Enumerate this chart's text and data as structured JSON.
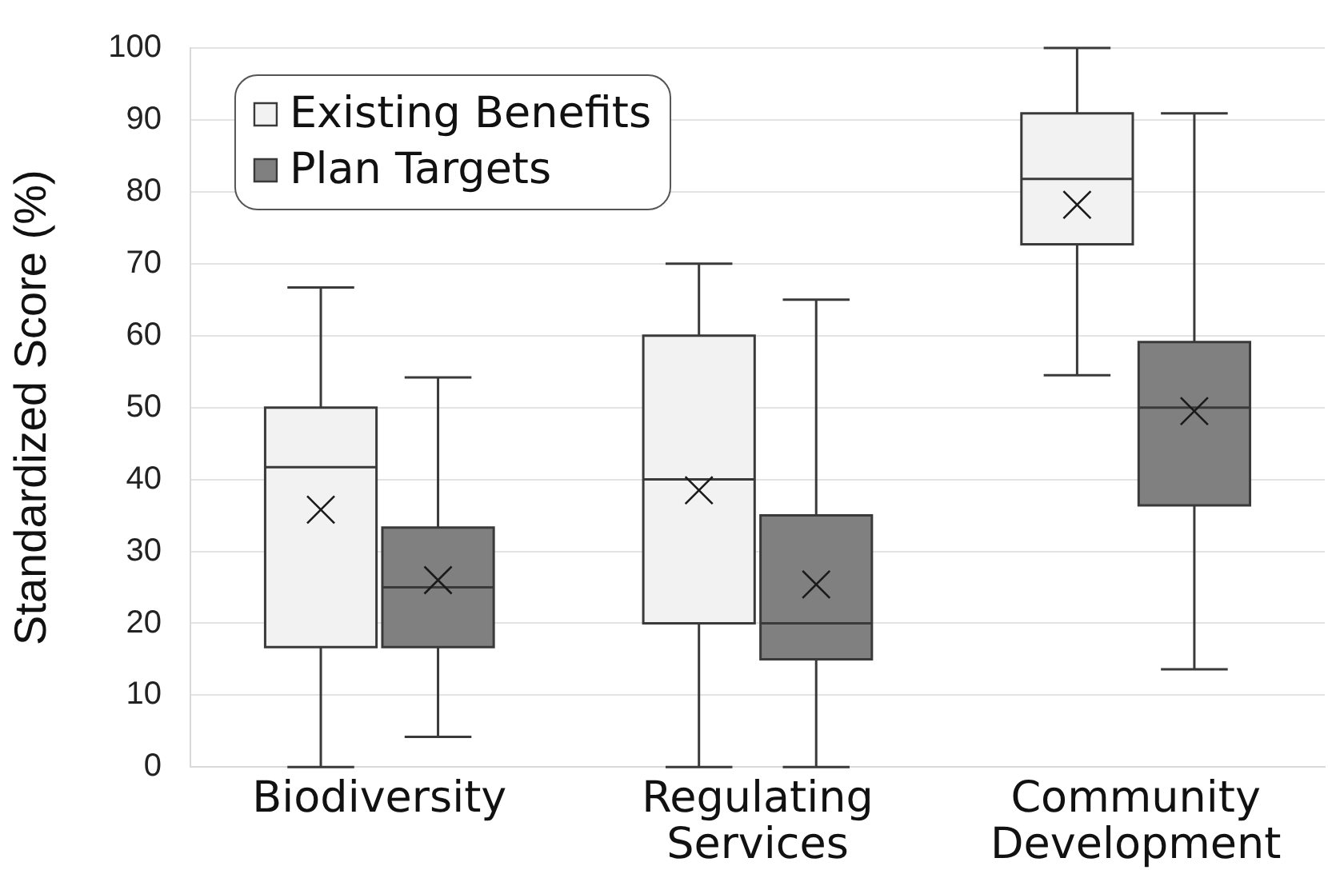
{
  "chart_data": {
    "type": "box",
    "ylabel": "Standardized Score (%)",
    "categories": [
      "Biodiversity",
      "Regulating Services",
      "Community Development"
    ],
    "series": [
      {
        "name": "Existing Benefits",
        "color": "#f2f2f2",
        "boxes": [
          {
            "low": 0,
            "q1": 16.7,
            "median": 41.7,
            "q3": 50,
            "high": 66.7,
            "mean": 35.8
          },
          {
            "low": 0,
            "q1": 20,
            "median": 40,
            "q3": 60,
            "high": 70,
            "mean": 38.5
          },
          {
            "low": 54.5,
            "q1": 72.7,
            "median": 81.8,
            "q3": 90.9,
            "high": 100,
            "mean": 78.2
          }
        ]
      },
      {
        "name": "Plan Targets",
        "color": "#808080",
        "boxes": [
          {
            "low": 4.2,
            "q1": 16.7,
            "median": 25,
            "q3": 33.3,
            "high": 54.2,
            "mean": 26
          },
          {
            "low": 0,
            "q1": 15,
            "median": 20,
            "q3": 35,
            "high": 65,
            "mean": 25.4
          },
          {
            "low": 13.6,
            "q1": 36.4,
            "median": 50,
            "q3": 59.1,
            "high": 90.9,
            "mean": 49.5
          }
        ]
      }
    ],
    "ylim": [
      0,
      100
    ],
    "yticks": [
      0,
      10,
      20,
      30,
      40,
      50,
      60,
      70,
      80,
      90,
      100
    ],
    "grid": "y",
    "legend": "top left",
    "marker": "cross"
  }
}
